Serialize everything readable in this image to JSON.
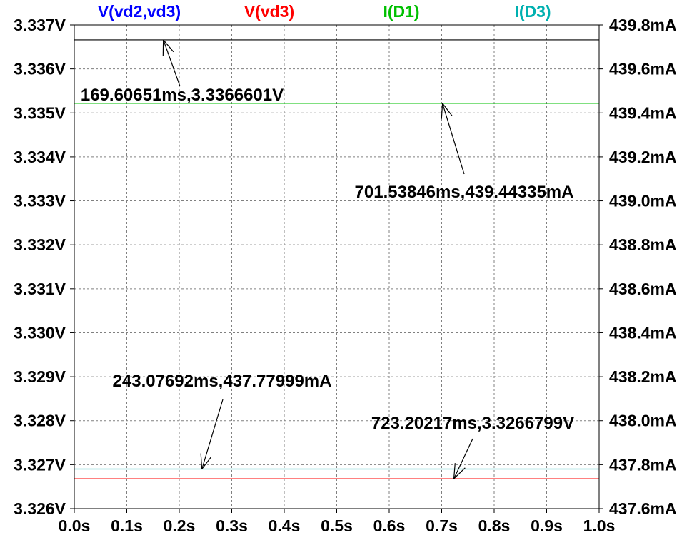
{
  "chart_data": {
    "type": "line",
    "x_axis": {
      "min": 0,
      "max": 1.0,
      "unit": "s",
      "ticks": [
        0,
        0.1,
        0.2,
        0.3,
        0.4,
        0.5,
        0.6,
        0.7,
        0.8,
        0.9,
        1.0
      ],
      "tick_labels": [
        "0.0s",
        "0.1s",
        "0.2s",
        "0.3s",
        "0.4s",
        "0.5s",
        "0.6s",
        "0.7s",
        "0.8s",
        "0.9s",
        "1.0s"
      ]
    },
    "y_left": {
      "min": 3.326,
      "max": 3.337,
      "unit": "V",
      "ticks": [
        3.337,
        3.336,
        3.335,
        3.334,
        3.333,
        3.332,
        3.331,
        3.33,
        3.329,
        3.328,
        3.327,
        3.326
      ],
      "tick_labels": [
        "3.337V",
        "3.336V",
        "3.335V",
        "3.334V",
        "3.333V",
        "3.332V",
        "3.331V",
        "3.330V",
        "3.329V",
        "3.328V",
        "3.327V",
        "3.326V"
      ]
    },
    "y_right": {
      "min": 437.6,
      "max": 439.8,
      "unit": "mA",
      "ticks": [
        439.8,
        439.6,
        439.4,
        439.2,
        439.0,
        438.8,
        438.6,
        438.4,
        438.2,
        438.0,
        437.8,
        437.6
      ],
      "tick_labels": [
        "439.8mA",
        "439.6mA",
        "439.4mA",
        "439.2mA",
        "439.0mA",
        "438.8mA",
        "438.6mA",
        "438.4mA",
        "438.2mA",
        "438.0mA",
        "437.8mA",
        "437.6mA"
      ]
    },
    "grid": true,
    "series": [
      {
        "name": "V(vd2,vd3)",
        "color": "#0000ff",
        "line_color": "#000000",
        "axis": "left",
        "x": [
          0,
          1.0
        ],
        "y": [
          3.3366601,
          3.3366601
        ]
      },
      {
        "name": "V(vd3)",
        "color": "#ff0000",
        "line_color": "#ff0000",
        "axis": "left",
        "x": [
          0,
          1.0
        ],
        "y": [
          3.3266799,
          3.3266799
        ]
      },
      {
        "name": "I(D1)",
        "color": "#00c000",
        "line_color": "#00c000",
        "axis": "right",
        "x": [
          0,
          1.0
        ],
        "y": [
          439.44335,
          439.44335
        ]
      },
      {
        "name": "I(D3)",
        "color": "#00b0b0",
        "line_color": "#00b0b0",
        "axis": "right",
        "x": [
          0,
          1.0
        ],
        "y": [
          437.77999,
          437.77999
        ]
      }
    ],
    "annotations": [
      {
        "text": "169.60651ms,3.3366601V",
        "axis": "left",
        "x": 0.16960651,
        "y": 3.3366601
      },
      {
        "text": "701.53846ms,439.44335mA",
        "axis": "right",
        "x": 0.70153846,
        "y": 439.44335
      },
      {
        "text": "243.07692ms,437.77999mA",
        "axis": "right",
        "x": 0.24307692,
        "y": 437.77999
      },
      {
        "text": "723.20217ms,3.3266799V",
        "axis": "left",
        "x": 0.72320217,
        "y": 3.3266799
      }
    ]
  }
}
